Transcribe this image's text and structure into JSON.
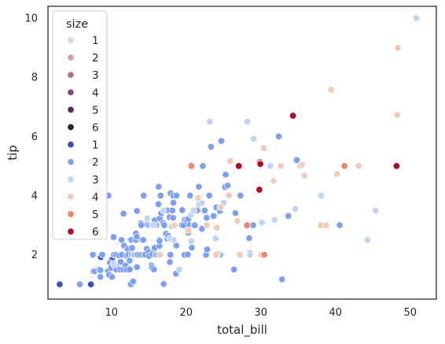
{
  "chart_data": {
    "type": "scatter",
    "title": "",
    "xlabel": "total_bill",
    "ylabel": "tip",
    "xlim": [
      1.5,
      53.5
    ],
    "ylim": [
      0.5,
      10.4
    ],
    "xticks": [
      10,
      20,
      30,
      40,
      50
    ],
    "yticks": [
      2,
      4,
      6,
      8,
      10
    ],
    "grid": false,
    "legend": {
      "title": "size",
      "placement": "top-left",
      "entries": [
        {
          "label": "1",
          "color": "#edd1cb"
        },
        {
          "label": "2",
          "color": "#d39da9"
        },
        {
          "label": "3",
          "color": "#b06d8f"
        },
        {
          "label": "4",
          "color": "#874773"
        },
        {
          "label": "5",
          "color": "#5a2a57"
        },
        {
          "label": "6",
          "color": "#2d1e3e"
        },
        {
          "label": "1",
          "color": "#3b4cc0"
        },
        {
          "label": "2",
          "color": "#7b9ff9"
        },
        {
          "label": "3",
          "color": "#c0d4f5"
        },
        {
          "label": "4",
          "color": "#f2cbb7"
        },
        {
          "label": "5",
          "color": "#ee8468"
        },
        {
          "label": "6",
          "color": "#b40426"
        }
      ]
    },
    "series": [
      {
        "name": "1",
        "color": "#3b4cc0",
        "points": [
          [
            3.07,
            1.0
          ],
          [
            7.25,
            1.0
          ],
          [
            8.58,
            1.92
          ],
          [
            10.07,
            1.83
          ]
        ]
      },
      {
        "name": "2",
        "color": "#7b9ff9",
        "points": [
          [
            5.75,
            1.0
          ],
          [
            7.25,
            5.15
          ],
          [
            7.51,
            2.0
          ],
          [
            7.56,
            1.44
          ],
          [
            7.74,
            1.44
          ],
          [
            8.35,
            1.5
          ],
          [
            8.51,
            1.25
          ],
          [
            8.52,
            1.48
          ],
          [
            8.77,
            2.0
          ],
          [
            9.55,
            1.45
          ],
          [
            9.6,
            4.0
          ],
          [
            9.68,
            1.32
          ],
          [
            9.78,
            1.73
          ],
          [
            9.94,
            1.56
          ],
          [
            10.07,
            1.25
          ],
          [
            10.27,
            1.71
          ],
          [
            10.29,
            2.6
          ],
          [
            10.33,
            2.0
          ],
          [
            10.34,
            1.66
          ],
          [
            10.34,
            2.0
          ],
          [
            10.59,
            1.61
          ],
          [
            10.63,
            2.0
          ],
          [
            10.65,
            1.5
          ],
          [
            11.02,
            1.98
          ],
          [
            11.17,
            1.5
          ],
          [
            11.24,
            1.76
          ],
          [
            11.35,
            2.5
          ],
          [
            11.38,
            2.0
          ],
          [
            11.59,
            1.5
          ],
          [
            11.61,
            3.39
          ],
          [
            11.69,
            2.31
          ],
          [
            11.87,
            1.63
          ],
          [
            12.02,
            1.97
          ],
          [
            12.03,
            1.5
          ],
          [
            12.16,
            2.2
          ],
          [
            12.26,
            2.0
          ],
          [
            12.43,
            1.8
          ],
          [
            12.46,
            1.5
          ],
          [
            12.48,
            2.52
          ],
          [
            12.54,
            2.5
          ],
          [
            12.6,
            1.0
          ],
          [
            12.66,
            2.5
          ],
          [
            12.69,
            2.0
          ],
          [
            12.74,
            2.01
          ],
          [
            12.76,
            2.23
          ],
          [
            12.9,
            1.1
          ],
          [
            13.0,
            2.0
          ],
          [
            13.03,
            2.0
          ],
          [
            13.13,
            2.0
          ],
          [
            13.27,
            2.5
          ],
          [
            13.28,
            2.72
          ],
          [
            13.37,
            2.0
          ],
          [
            13.39,
            2.61
          ],
          [
            13.42,
            3.48
          ],
          [
            13.42,
            1.58
          ],
          [
            13.51,
            2.0
          ],
          [
            13.81,
            2.0
          ],
          [
            13.94,
            3.06
          ],
          [
            14.0,
            3.0
          ],
          [
            14.07,
            2.5
          ],
          [
            14.15,
            2.0
          ],
          [
            14.26,
            2.5
          ],
          [
            14.31,
            4.0
          ],
          [
            14.48,
            2.0
          ],
          [
            14.52,
            2.0
          ],
          [
            14.73,
            2.2
          ],
          [
            14.78,
            3.23
          ],
          [
            14.83,
            3.02
          ],
          [
            15.01,
            2.09
          ],
          [
            15.04,
            1.96
          ],
          [
            15.06,
            3.0
          ],
          [
            15.36,
            1.64
          ],
          [
            15.38,
            3.0
          ],
          [
            15.42,
            1.57
          ],
          [
            15.48,
            2.02
          ],
          [
            15.53,
            3.0
          ],
          [
            15.69,
            1.5
          ],
          [
            15.77,
            2.23
          ],
          [
            15.81,
            3.16
          ],
          [
            15.95,
            2.0
          ],
          [
            15.98,
            2.03
          ],
          [
            15.98,
            3.0
          ],
          [
            16.0,
            2.0
          ],
          [
            16.29,
            3.71
          ],
          [
            16.31,
            2.0
          ],
          [
            16.32,
            4.3
          ],
          [
            16.4,
            2.5
          ],
          [
            16.43,
            2.3
          ],
          [
            16.45,
            2.47
          ],
          [
            16.47,
            3.23
          ],
          [
            16.58,
            4.0
          ],
          [
            16.66,
            3.4
          ],
          [
            16.93,
            3.07
          ],
          [
            16.97,
            3.5
          ],
          [
            16.99,
            1.01
          ],
          [
            17.07,
            3.0
          ],
          [
            17.29,
            2.71
          ],
          [
            17.31,
            3.5
          ],
          [
            17.46,
            2.54
          ],
          [
            17.47,
            3.5
          ],
          [
            17.59,
            2.64
          ],
          [
            17.78,
            3.27
          ],
          [
            17.82,
            1.75
          ],
          [
            17.89,
            2.0
          ],
          [
            17.92,
            4.08
          ],
          [
            18.15,
            3.5
          ],
          [
            18.24,
            3.76
          ],
          [
            18.26,
            3.25
          ],
          [
            18.28,
            4.0
          ],
          [
            18.29,
            3.76
          ],
          [
            18.35,
            2.5
          ],
          [
            18.64,
            1.36
          ],
          [
            18.69,
            2.31
          ],
          [
            18.71,
            4.0
          ],
          [
            19.08,
            1.5
          ],
          [
            19.44,
            3.0
          ],
          [
            19.49,
            3.51
          ],
          [
            19.65,
            3.0
          ],
          [
            19.77,
            2.0
          ],
          [
            19.82,
            3.18
          ],
          [
            20.08,
            3.15
          ],
          [
            20.23,
            2.01
          ],
          [
            20.29,
            2.75
          ],
          [
            20.29,
            3.21
          ],
          [
            20.45,
            3.0
          ],
          [
            20.53,
            4.0
          ],
          [
            20.76,
            2.24
          ],
          [
            20.9,
            3.5
          ],
          [
            21.01,
            3.0
          ],
          [
            21.16,
            3.0
          ],
          [
            21.5,
            3.5
          ],
          [
            21.58,
            3.92
          ],
          [
            21.7,
            4.3
          ],
          [
            22.12,
            2.88
          ],
          [
            22.23,
            5.0
          ],
          [
            22.42,
            3.48
          ],
          [
            22.49,
            3.5
          ],
          [
            22.67,
            2.0
          ],
          [
            22.75,
            3.25
          ],
          [
            22.82,
            2.18
          ],
          [
            23.1,
            4.0
          ],
          [
            23.33,
            5.65
          ],
          [
            23.68,
            3.31
          ],
          [
            24.06,
            3.6
          ],
          [
            24.52,
            3.48
          ],
          [
            24.55,
            2.0
          ],
          [
            24.59,
            3.61
          ],
          [
            24.71,
            5.85
          ],
          [
            25.21,
            4.29
          ],
          [
            25.29,
            4.71
          ],
          [
            25.56,
            4.34
          ],
          [
            26.41,
            1.5
          ],
          [
            26.59,
            3.41
          ],
          [
            26.88,
            3.12
          ],
          [
            27.05,
            5.0
          ],
          [
            27.2,
            4.0
          ],
          [
            27.28,
            4.0
          ],
          [
            28.15,
            3.0
          ],
          [
            28.17,
            6.5
          ],
          [
            28.44,
            2.56
          ],
          [
            28.55,
            2.05
          ],
          [
            28.97,
            3.0
          ],
          [
            29.85,
            5.14
          ],
          [
            31.27,
            5.0
          ],
          [
            31.71,
            4.5
          ],
          [
            32.4,
            6.0
          ],
          [
            32.83,
            1.17
          ],
          [
            33.68,
            3.31
          ],
          [
            34.81,
            5.2
          ],
          [
            40.55,
            3.0
          ]
        ]
      },
      {
        "name": "3",
        "color": "#c0d4f5",
        "points": [
          [
            10.33,
            1.67
          ],
          [
            14.78,
            3.23
          ],
          [
            15.69,
            3.0
          ],
          [
            16.97,
            3.5
          ],
          [
            17.82,
            2.55
          ],
          [
            18.35,
            2.5
          ],
          [
            19.08,
            1.5
          ],
          [
            20.65,
            3.35
          ],
          [
            20.69,
            2.45
          ],
          [
            21.01,
            3.5
          ],
          [
            21.7,
            3.7
          ],
          [
            22.12,
            3.75
          ],
          [
            23.17,
            6.5
          ],
          [
            23.95,
            2.55
          ],
          [
            24.27,
            2.03
          ],
          [
            25.0,
            3.75
          ],
          [
            26.88,
            3.12
          ],
          [
            28.17,
            6.5
          ],
          [
            28.55,
            2.0
          ],
          [
            29.03,
            5.92
          ],
          [
            30.14,
            3.09
          ],
          [
            31.27,
            5.0
          ],
          [
            31.85,
            3.18
          ],
          [
            34.63,
            3.55
          ],
          [
            35.26,
            5.0
          ],
          [
            38.07,
            4.0
          ],
          [
            44.3,
            2.5
          ],
          [
            45.35,
            3.5
          ],
          [
            50.81,
            10.0
          ],
          [
            18.04,
            2.96
          ]
        ]
      },
      {
        "name": "4",
        "color": "#f2cbb7",
        "points": [
          [
            16.49,
            2.0
          ],
          [
            18.43,
            3.0
          ],
          [
            20.27,
            2.83
          ],
          [
            20.69,
            5.0
          ],
          [
            22.76,
            3.0
          ],
          [
            24.01,
            2.0
          ],
          [
            24.59,
            3.61
          ],
          [
            25.89,
            5.16
          ],
          [
            27.18,
            2.0
          ],
          [
            29.8,
            4.2
          ],
          [
            30.4,
            5.6
          ],
          [
            31.71,
            4.5
          ],
          [
            32.68,
            5.0
          ],
          [
            34.3,
            6.7
          ],
          [
            35.83,
            4.67
          ],
          [
            38.01,
            3.0
          ],
          [
            39.42,
            7.58
          ],
          [
            40.17,
            4.73
          ],
          [
            41.19,
            5.0
          ],
          [
            43.11,
            5.0
          ],
          [
            48.27,
            6.73
          ],
          [
            48.33,
            9.0
          ],
          [
            21.58,
            3.92
          ],
          [
            24.08,
            2.92
          ],
          [
            25.71,
            4.0
          ],
          [
            26.86,
            3.14
          ],
          [
            30.06,
            2.0
          ],
          [
            38.73,
            3.0
          ],
          [
            35.51,
            5.04
          ]
        ]
      },
      {
        "name": "5",
        "color": "#ee8468",
        "points": [
          [
            20.69,
            5.0
          ],
          [
            28.15,
            3.0
          ],
          [
            29.85,
            5.14
          ],
          [
            30.46,
            2.0
          ],
          [
            41.19,
            5.0
          ]
        ]
      },
      {
        "name": "6",
        "color": "#b40426",
        "points": [
          [
            27.05,
            5.0
          ],
          [
            29.8,
            4.2
          ],
          [
            34.3,
            6.7
          ],
          [
            48.17,
            5.0
          ],
          [
            29.93,
            5.07
          ]
        ]
      }
    ]
  }
}
